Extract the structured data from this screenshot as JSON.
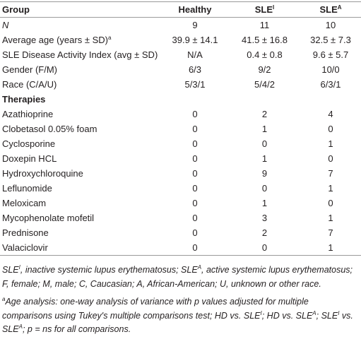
{
  "table": {
    "header": [
      [
        "Group"
      ],
      [
        "Healthy"
      ],
      [
        "SLE",
        {
          "sup": "I"
        }
      ],
      [
        "SLE",
        {
          "sup": "A"
        }
      ]
    ],
    "groups": [
      {
        "rows": [
          {
            "label": [
              "N"
            ],
            "cells": [
              "9",
              "11",
              "10"
            ]
          },
          {
            "label": [
              "Average age (years ± SD)",
              {
                "sup": "a"
              }
            ],
            "cells": [
              "39.9 ± 14.1",
              "41.5 ± 16.8",
              "32.5 ± 7.3"
            ]
          },
          {
            "label": [
              "SLE Disease Activity Index (avg ± SD)"
            ],
            "cells": [
              "N/A",
              "0.4 ± 0.8",
              "9.6 ± 5.7"
            ]
          },
          {
            "label": [
              "Gender (F/M)"
            ],
            "cells": [
              "6/3",
              "9/2",
              "10/0"
            ]
          },
          {
            "label": [
              "Race (C/A/U)"
            ],
            "cells": [
              "5/3/1",
              "5/4/2",
              "6/3/1"
            ]
          }
        ]
      },
      {
        "title": "Therapies",
        "rows": [
          {
            "label": [
              "Azathioprine"
            ],
            "cells": [
              "0",
              "2",
              "4"
            ]
          },
          {
            "label": [
              "Clobetasol 0.05% foam"
            ],
            "cells": [
              "0",
              "1",
              "0"
            ]
          },
          {
            "label": [
              "Cyclosporine"
            ],
            "cells": [
              "0",
              "0",
              "1"
            ]
          },
          {
            "label": [
              "Doxepin HCL"
            ],
            "cells": [
              "0",
              "1",
              "0"
            ]
          },
          {
            "label": [
              "Hydroxychloroquine"
            ],
            "cells": [
              "0",
              "9",
              "7"
            ]
          },
          {
            "label": [
              "Leflunomide"
            ],
            "cells": [
              "0",
              "0",
              "1"
            ]
          },
          {
            "label": [
              "Meloxicam"
            ],
            "cells": [
              "0",
              "1",
              "0"
            ]
          },
          {
            "label": [
              "Mycophenolate mofetil"
            ],
            "cells": [
              "0",
              "3",
              "1"
            ]
          },
          {
            "label": [
              "Prednisone"
            ],
            "cells": [
              "0",
              "2",
              "7"
            ]
          },
          {
            "label": [
              "Valaciclovir"
            ],
            "cells": [
              "0",
              "0",
              "1"
            ]
          }
        ]
      }
    ],
    "footnotes": [
      [
        "SLE",
        {
          "sup": "I"
        },
        ", inactive systemic lupus erythematosus; SLE",
        {
          "sup": "A"
        },
        ", active systemic lupus erythematosus; F, female; M, male; C, Caucasian; A, African-American; U, unknown or other race."
      ],
      [
        {
          "sup": "a"
        },
        "Age analysis: one-way analysis of variance with p values adjusted for multiple comparisons using Tukey's multiple comparisons test; HD vs. SLE",
        {
          "sup": "I"
        },
        "; HD vs. SLE",
        {
          "sup": "A"
        },
        "; SLE",
        {
          "sup": "I"
        },
        " vs. SLE",
        {
          "sup": "A"
        },
        "; p = ns for all comparisons."
      ]
    ]
  }
}
